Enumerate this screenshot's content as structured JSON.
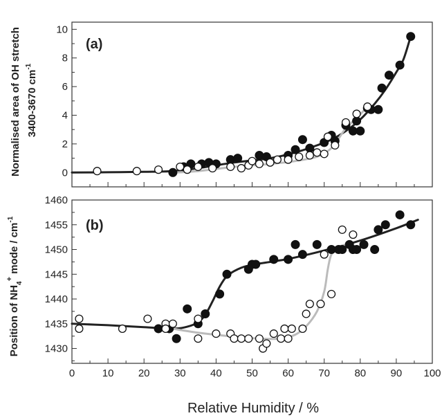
{
  "chart_data": [
    {
      "panel": "(a)",
      "type": "scatter",
      "ylabel_line1": "Normalised area of OH stretch",
      "ylabel_line2": "3400-3670 cm",
      "ylabel_line2_sup": "-1",
      "xlim": [
        0,
        100
      ],
      "ylim": [
        -1,
        10.5
      ],
      "yticks": [
        0,
        2,
        4,
        6,
        8,
        10
      ],
      "series": [
        {
          "marker": "filled-circle",
          "points": [
            [
              28,
              0.0
            ],
            [
              31,
              0.4
            ],
            [
              33,
              0.6
            ],
            [
              36,
              0.6
            ],
            [
              38,
              0.7
            ],
            [
              40,
              0.6
            ],
            [
              44,
              0.9
            ],
            [
              46,
              1.0
            ],
            [
              52,
              1.2
            ],
            [
              54,
              1.1
            ],
            [
              60,
              1.2
            ],
            [
              62,
              1.6
            ],
            [
              64,
              2.3
            ],
            [
              66,
              1.7
            ],
            [
              70,
              2.1
            ],
            [
              72,
              2.6
            ],
            [
              73,
              2.2
            ],
            [
              76,
              3.3
            ],
            [
              78,
              2.9
            ],
            [
              79,
              3.6
            ],
            [
              80,
              2.9
            ],
            [
              82,
              4.5
            ],
            [
              83,
              4.4
            ],
            [
              85,
              4.4
            ],
            [
              86,
              5.9
            ],
            [
              88,
              6.8
            ],
            [
              91,
              7.5
            ],
            [
              94,
              9.5
            ]
          ]
        },
        {
          "marker": "open-circle",
          "points": [
            [
              7,
              0.1
            ],
            [
              18,
              0.1
            ],
            [
              24,
              0.2
            ],
            [
              30,
              0.4
            ],
            [
              32,
              0.2
            ],
            [
              35,
              0.4
            ],
            [
              39,
              0.3
            ],
            [
              44,
              0.4
            ],
            [
              47,
              0.3
            ],
            [
              49,
              0.5
            ],
            [
              50,
              0.8
            ],
            [
              52,
              0.6
            ],
            [
              55,
              0.7
            ],
            [
              57,
              0.9
            ],
            [
              60,
              0.9
            ],
            [
              63,
              1.1
            ],
            [
              66,
              1.2
            ],
            [
              68,
              1.4
            ],
            [
              70,
              1.3
            ],
            [
              71,
              2.5
            ],
            [
              73,
              1.9
            ],
            [
              76,
              3.5
            ],
            [
              79,
              4.1
            ],
            [
              82,
              4.6
            ]
          ]
        }
      ],
      "fit_curves": [
        {
          "color": "#222222",
          "points": [
            [
              0,
              0.0
            ],
            [
              10,
              0.02
            ],
            [
              20,
              0.05
            ],
            [
              28,
              0.1
            ],
            [
              35,
              0.3
            ],
            [
              45,
              0.7
            ],
            [
              55,
              1.0
            ],
            [
              62,
              1.4
            ],
            [
              68,
              1.9
            ],
            [
              72,
              2.3
            ],
            [
              76,
              2.9
            ],
            [
              80,
              3.7
            ],
            [
              84,
              4.8
            ],
            [
              87,
              5.8
            ],
            [
              90,
              7.0
            ],
            [
              92,
              7.9
            ],
            [
              94,
              9.5
            ]
          ]
        },
        {
          "color": "#bbbbbb",
          "points": [
            [
              28,
              0.0
            ],
            [
              35,
              0.1
            ],
            [
              45,
              0.4
            ],
            [
              55,
              0.6
            ],
            [
              62,
              0.8
            ],
            [
              68,
              1.1
            ],
            [
              71,
              1.5
            ],
            [
              73,
              2.0
            ],
            [
              76,
              3.1
            ],
            [
              79,
              3.8
            ],
            [
              82,
              4.6
            ]
          ]
        }
      ]
    },
    {
      "panel": "(b)",
      "type": "scatter",
      "ylabel_main": "Position of NH",
      "ylabel_sub": "4",
      "ylabel_sup": "+",
      "ylabel_tail": " mode / cm",
      "ylabel_tail_sup": "-1",
      "xlabel": "Relative Humidity / %",
      "xlim": [
        0,
        100
      ],
      "xticks": [
        0,
        10,
        20,
        30,
        40,
        50,
        60,
        70,
        80,
        90,
        100
      ],
      "ylim": [
        1427,
        1460
      ],
      "yticks": [
        1430,
        1435,
        1440,
        1445,
        1450,
        1455,
        1460
      ],
      "series": [
        {
          "marker": "filled-circle",
          "points": [
            [
              24,
              1434
            ],
            [
              27,
              1434
            ],
            [
              29,
              1432
            ],
            [
              32,
              1438
            ],
            [
              35,
              1435
            ],
            [
              37,
              1437
            ],
            [
              41,
              1441
            ],
            [
              43,
              1445
            ],
            [
              49,
              1446
            ],
            [
              50,
              1447
            ],
            [
              51,
              1447
            ],
            [
              56,
              1448
            ],
            [
              60,
              1448
            ],
            [
              62,
              1451
            ],
            [
              64,
              1449
            ],
            [
              68,
              1451
            ],
            [
              72,
              1450
            ],
            [
              74,
              1450
            ],
            [
              75,
              1450
            ],
            [
              77,
              1451
            ],
            [
              78,
              1450
            ],
            [
              79,
              1450
            ],
            [
              81,
              1451
            ],
            [
              84,
              1450
            ],
            [
              85,
              1454
            ],
            [
              87,
              1455
            ],
            [
              91,
              1457
            ],
            [
              94,
              1455
            ]
          ]
        },
        {
          "marker": "open-circle",
          "points": [
            [
              2,
              1436
            ],
            [
              2,
              1434
            ],
            [
              14,
              1434
            ],
            [
              21,
              1436
            ],
            [
              26,
              1435
            ],
            [
              26,
              1434
            ],
            [
              28,
              1435
            ],
            [
              35,
              1432
            ],
            [
              35,
              1436
            ],
            [
              40,
              1433
            ],
            [
              44,
              1433
            ],
            [
              45,
              1432
            ],
            [
              47,
              1432
            ],
            [
              49,
              1432
            ],
            [
              52,
              1432
            ],
            [
              53,
              1430
            ],
            [
              54,
              1431
            ],
            [
              56,
              1433
            ],
            [
              58,
              1432
            ],
            [
              59,
              1434
            ],
            [
              60,
              1432
            ],
            [
              61,
              1434
            ],
            [
              64,
              1434
            ],
            [
              65,
              1437
            ],
            [
              66,
              1439
            ],
            [
              69,
              1439
            ],
            [
              70,
              1449
            ],
            [
              72,
              1441
            ],
            [
              75,
              1454
            ],
            [
              78,
              1453
            ]
          ]
        }
      ],
      "fit_curves": [
        {
          "color": "#222222",
          "points": [
            [
              0,
              1435
            ],
            [
              10,
              1434.7
            ],
            [
              20,
              1434.3
            ],
            [
              28,
              1434
            ],
            [
              32,
              1434.4
            ],
            [
              35,
              1435.3
            ],
            [
              37,
              1436.8
            ],
            [
              39,
              1439.5
            ],
            [
              41,
              1442.5
            ],
            [
              43,
              1444.6
            ],
            [
              46,
              1446
            ],
            [
              50,
              1446.9
            ],
            [
              60,
              1448.1
            ],
            [
              70,
              1449.8
            ],
            [
              80,
              1451.8
            ],
            [
              90,
              1454.3
            ],
            [
              96,
              1456
            ]
          ]
        },
        {
          "color": "#bbbbbb",
          "points": [
            [
              28,
              1434
            ],
            [
              35,
              1433.2
            ],
            [
              45,
              1432.4
            ],
            [
              52,
              1432
            ],
            [
              58,
              1432
            ],
            [
              62,
              1432.8
            ],
            [
              65,
              1434.5
            ],
            [
              68,
              1437.5
            ],
            [
              70,
              1441.5
            ],
            [
              71,
              1446
            ],
            [
              72,
              1449
            ],
            [
              74,
              1450.5
            ],
            [
              76,
              1451
            ]
          ]
        }
      ]
    }
  ]
}
